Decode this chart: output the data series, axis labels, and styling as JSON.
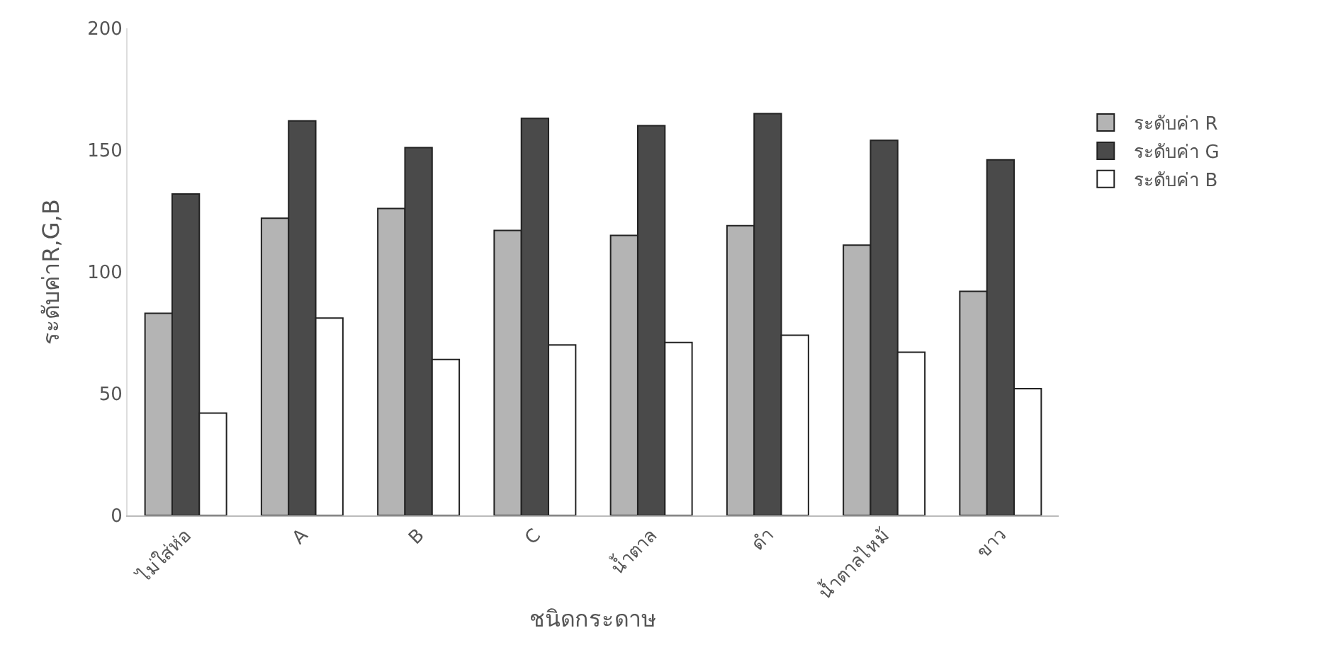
{
  "chart_data": {
    "type": "bar",
    "xlabel": "ชนิดกระดาษ",
    "ylabel": "ระดับค่าR,G,B",
    "categories": [
      "ไม่ใส่ห่อ",
      "A",
      "B",
      "C",
      "น้ำตาล",
      "ดำ",
      "น้ำตาลไหม้",
      "ขาว"
    ],
    "series": [
      {
        "name": "ระดับค่า R",
        "color": "#b4b4b4",
        "values": [
          83,
          122,
          126,
          117,
          115,
          119,
          111,
          92
        ]
      },
      {
        "name": "ระดับค่า G",
        "color": "#4a4a4a",
        "values": [
          132,
          162,
          151,
          163,
          160,
          165,
          154,
          146
        ]
      },
      {
        "name": "ระดับค่า B",
        "color": "#ffffff",
        "values": [
          42,
          81,
          64,
          70,
          71,
          74,
          67,
          52
        ]
      }
    ],
    "ylim": [
      0,
      200
    ],
    "yticks": [
      0,
      50,
      100,
      150,
      200
    ],
    "grid": false,
    "legend": "right"
  }
}
